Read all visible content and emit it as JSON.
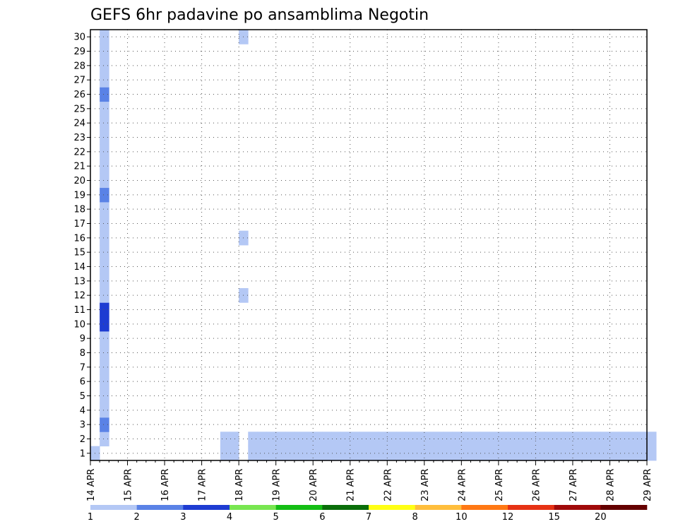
{
  "chart_data": {
    "type": "heatmap",
    "title": "GEFS 6hr padavine po ansamblima Negotin",
    "xlabel": "",
    "ylabel": "",
    "x_ticks": [
      "14 APR",
      "15 APR",
      "16 APR",
      "17 APR",
      "18 APR",
      "19 APR",
      "20 APR",
      "21 APR",
      "22 APR",
      "23 APR",
      "24 APR",
      "25 APR",
      "26 APR",
      "27 APR",
      "28 APR",
      "29 APR"
    ],
    "y_ticks": [
      1,
      2,
      3,
      4,
      5,
      6,
      7,
      8,
      9,
      10,
      11,
      12,
      13,
      14,
      15,
      16,
      17,
      18,
      19,
      20,
      21,
      22,
      23,
      24,
      25,
      26,
      27,
      28,
      29,
      30
    ],
    "grid": true,
    "colorbar": {
      "labels": [
        "1",
        "2",
        "3",
        "4",
        "5",
        "6",
        "7",
        "8",
        "10",
        "12",
        "15",
        "20"
      ],
      "colors": [
        "#b4c8f5",
        "#5a82e6",
        "#1e3cd2",
        "#78e650",
        "#14be14",
        "#0a6e0a",
        "#ffff14",
        "#ffbe3c",
        "#ff7814",
        "#e63214",
        "#a00a0a",
        "#640000"
      ]
    },
    "note": "Cells: member (y), 6-hour step index from 14 APR 00Z (x), colour class (index into colorbar.colors). Values are approximate readings.",
    "cells": [
      [
        1,
        0,
        0
      ],
      [
        2,
        1,
        0
      ],
      [
        3,
        1,
        1
      ],
      [
        4,
        1,
        0
      ],
      [
        5,
        1,
        0
      ],
      [
        6,
        1,
        0
      ],
      [
        7,
        1,
        0
      ],
      [
        8,
        1,
        0
      ],
      [
        9,
        1,
        0
      ],
      [
        10,
        1,
        2
      ],
      [
        11,
        1,
        2
      ],
      [
        12,
        1,
        0
      ],
      [
        13,
        1,
        0
      ],
      [
        14,
        1,
        0
      ],
      [
        15,
        1,
        0
      ],
      [
        16,
        1,
        0
      ],
      [
        17,
        1,
        0
      ],
      [
        18,
        1,
        0
      ],
      [
        19,
        1,
        1
      ],
      [
        20,
        1,
        0
      ],
      [
        21,
        1,
        0
      ],
      [
        22,
        1,
        0
      ],
      [
        23,
        1,
        0
      ],
      [
        24,
        1,
        0
      ],
      [
        25,
        1,
        0
      ],
      [
        26,
        1,
        1
      ],
      [
        27,
        1,
        0
      ],
      [
        28,
        1,
        0
      ],
      [
        29,
        1,
        0
      ],
      [
        30,
        1,
        0
      ],
      [
        1,
        14,
        0
      ],
      [
        2,
        14,
        0
      ],
      [
        1,
        15,
        0
      ],
      [
        2,
        15,
        0
      ],
      [
        12,
        16,
        0
      ],
      [
        16,
        16,
        0
      ],
      [
        30,
        16,
        0
      ],
      [
        1,
        17,
        0
      ],
      [
        2,
        17,
        0
      ],
      [
        1,
        18,
        0
      ],
      [
        2,
        18,
        0
      ],
      [
        1,
        19,
        0
      ],
      [
        2,
        19,
        0
      ],
      [
        1,
        20,
        0
      ],
      [
        2,
        20,
        0
      ],
      [
        1,
        21,
        0
      ],
      [
        2,
        21,
        0
      ],
      [
        1,
        22,
        0
      ],
      [
        2,
        22,
        0
      ],
      [
        1,
        23,
        0
      ],
      [
        2,
        23,
        0
      ],
      [
        1,
        24,
        0
      ],
      [
        2,
        24,
        0
      ],
      [
        1,
        25,
        0
      ],
      [
        2,
        25,
        0
      ],
      [
        1,
        26,
        0
      ],
      [
        2,
        26,
        0
      ],
      [
        1,
        27,
        0
      ],
      [
        2,
        27,
        0
      ],
      [
        1,
        28,
        0
      ],
      [
        2,
        28,
        0
      ],
      [
        1,
        29,
        0
      ],
      [
        2,
        29,
        0
      ],
      [
        1,
        30,
        0
      ],
      [
        2,
        30,
        0
      ],
      [
        1,
        31,
        0
      ],
      [
        2,
        31,
        0
      ],
      [
        1,
        32,
        0
      ],
      [
        2,
        32,
        0
      ],
      [
        1,
        33,
        0
      ],
      [
        2,
        33,
        0
      ],
      [
        1,
        34,
        0
      ],
      [
        2,
        34,
        0
      ],
      [
        1,
        35,
        0
      ],
      [
        2,
        35,
        0
      ],
      [
        1,
        36,
        0
      ],
      [
        2,
        36,
        0
      ],
      [
        1,
        37,
        0
      ],
      [
        2,
        37,
        0
      ],
      [
        1,
        38,
        0
      ],
      [
        2,
        38,
        0
      ],
      [
        1,
        39,
        0
      ],
      [
        2,
        39,
        0
      ],
      [
        1,
        40,
        0
      ],
      [
        2,
        40,
        0
      ],
      [
        1,
        41,
        0
      ],
      [
        2,
        41,
        0
      ],
      [
        1,
        42,
        0
      ],
      [
        2,
        42,
        0
      ],
      [
        1,
        43,
        0
      ],
      [
        2,
        43,
        0
      ],
      [
        1,
        44,
        0
      ],
      [
        2,
        44,
        0
      ],
      [
        1,
        45,
        0
      ],
      [
        2,
        45,
        0
      ],
      [
        1,
        46,
        0
      ],
      [
        2,
        46,
        0
      ],
      [
        1,
        47,
        0
      ],
      [
        2,
        47,
        0
      ],
      [
        1,
        48,
        0
      ],
      [
        2,
        48,
        0
      ],
      [
        1,
        49,
        0
      ],
      [
        2,
        49,
        0
      ],
      [
        1,
        50,
        0
      ],
      [
        2,
        50,
        0
      ],
      [
        1,
        51,
        0
      ],
      [
        2,
        51,
        0
      ],
      [
        1,
        52,
        0
      ],
      [
        2,
        52,
        0
      ],
      [
        1,
        53,
        0
      ],
      [
        2,
        53,
        0
      ],
      [
        1,
        54,
        0
      ],
      [
        2,
        54,
        0
      ],
      [
        1,
        55,
        0
      ],
      [
        2,
        55,
        0
      ],
      [
        1,
        56,
        0
      ],
      [
        2,
        56,
        0
      ],
      [
        1,
        57,
        0
      ],
      [
        2,
        57,
        0
      ],
      [
        1,
        58,
        0
      ],
      [
        2,
        58,
        0
      ],
      [
        1,
        59,
        0
      ],
      [
        2,
        59,
        0
      ],
      [
        1,
        60,
        0
      ],
      [
        2,
        60,
        0
      ]
    ]
  }
}
